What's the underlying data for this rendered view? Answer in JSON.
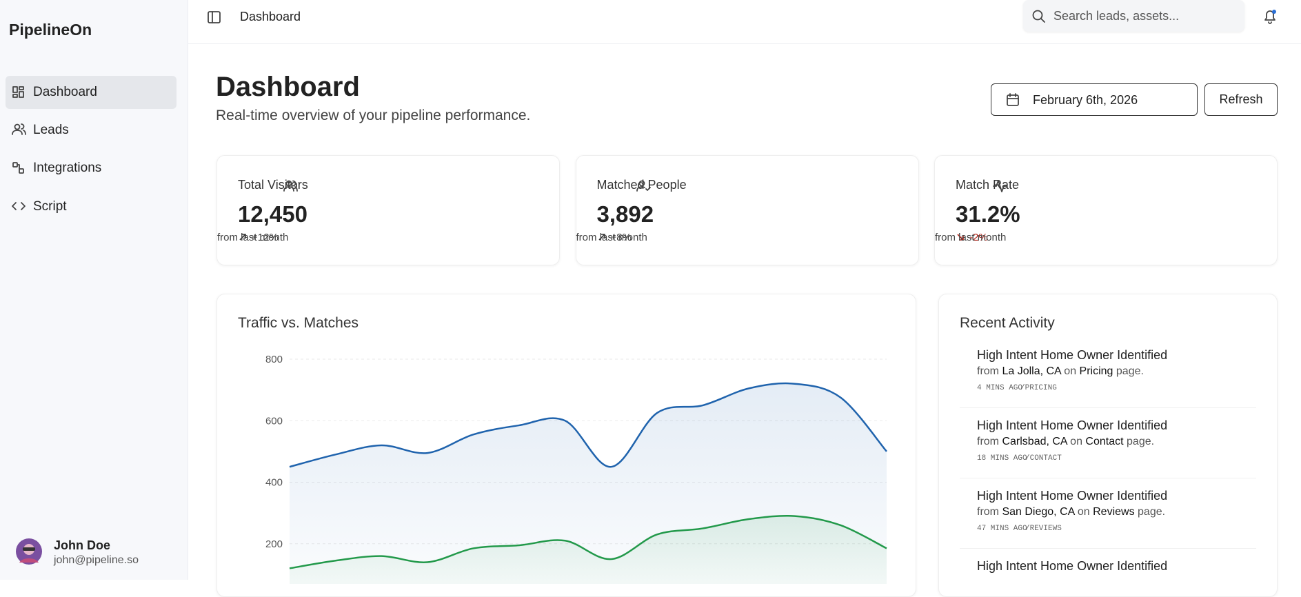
{
  "sidebar": {
    "brand": "PipelineOn",
    "nav": [
      "Dashboard",
      "Leads",
      "Integrations",
      "Script"
    ],
    "user": {
      "name": "John Doe",
      "email": "john@pipeline.so"
    }
  },
  "header": {
    "breadcrumb": "Dashboard",
    "search_placeholder": "Search leads, assets..."
  },
  "page": {
    "title": "Dashboard",
    "subtitle": "Real-time overview of your pipeline performance.",
    "date": "February 6th, 2026",
    "refresh": "Refresh"
  },
  "stats": [
    {
      "label": "Total Visitors",
      "value": "12,450",
      "delta": "+12%",
      "note": "from last month"
    },
    {
      "label": "Matched People",
      "value": "3,892",
      "delta": "+8%",
      "note": "from last month"
    },
    {
      "label": "Match Rate",
      "value": "31.2%",
      "delta": "-2%",
      "note": "from last month"
    }
  ],
  "chart_data": {
    "type": "line",
    "title": "Traffic vs. Matches",
    "categories": [
      null,
      null,
      null,
      null,
      null,
      null,
      null,
      null,
      null,
      null,
      null,
      null,
      null,
      null
    ],
    "series": [
      {
        "color": "#1f63ad",
        "values": [
          450,
          490,
          520,
          495,
          555,
          585,
          600,
          450,
          625,
          650,
          705,
          720,
          675,
          500
        ]
      },
      {
        "color": "#22994a",
        "values": [
          120,
          145,
          160,
          140,
          185,
          195,
          210,
          150,
          230,
          250,
          280,
          290,
          260,
          185
        ]
      }
    ],
    "ylim": [
      0,
      800
    ],
    "yticks": [
      200,
      400,
      600,
      800
    ],
    "grid": true
  },
  "activity": {
    "title": "Recent Activity",
    "items": [
      {
        "title": "High Intent Home Owner Identified",
        "from": "from",
        "location": "La Jolla, CA",
        "on": "on",
        "page": "Pricing",
        "suffix": "page.",
        "time": "4 MINS AGO",
        "path": "/PRICING"
      },
      {
        "title": "High Intent Home Owner Identified",
        "from": "from",
        "location": "Carlsbad, CA",
        "on": "on",
        "page": "Contact",
        "suffix": "page.",
        "time": "18 MINS AGO",
        "path": "/CONTACT"
      },
      {
        "title": "High Intent Home Owner Identified",
        "from": "from",
        "location": "San Diego, CA",
        "on": "on",
        "page": "Reviews",
        "suffix": "page.",
        "time": "47 MINS AGO",
        "path": "/REVIEWS"
      },
      {
        "title": "High Intent Home Owner Identified"
      }
    ]
  }
}
